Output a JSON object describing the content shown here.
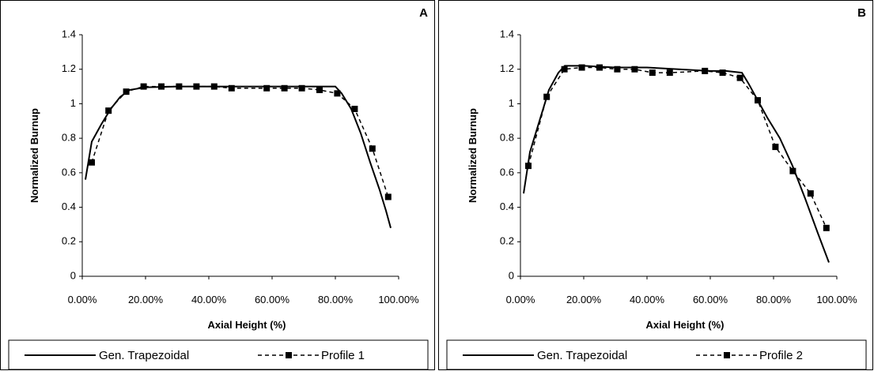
{
  "panels": [
    {
      "label": "A",
      "chart_data": {
        "type": "line",
        "xlabel": "Axial Height (%)",
        "ylabel": "Normalized Burnup",
        "xlim": [
          0,
          1
        ],
        "ylim": [
          0,
          1.4
        ],
        "yticks": [
          "0",
          "0.2",
          "0.4",
          "0.6",
          "0.8",
          "1",
          "1.2",
          "1.4"
        ],
        "xticks": [
          "0.00%",
          "20.00%",
          "40.00%",
          "60.00%",
          "80.00%",
          "100.00%"
        ],
        "grid": false,
        "legend_position": "bottom",
        "series": [
          {
            "name": "Gen. Trapezoidal",
            "style": "solid",
            "color": "#000000",
            "x": [
              0.01,
              0.03,
              0.06,
              0.09,
              0.12,
              0.15,
              0.2,
              0.3,
              0.4,
              0.5,
              0.6,
              0.7,
              0.8,
              0.82,
              0.85,
              0.88,
              0.91,
              0.94,
              0.96,
              0.975
            ],
            "y": [
              0.56,
              0.78,
              0.88,
              0.97,
              1.04,
              1.08,
              1.095,
              1.1,
              1.1,
              1.1,
              1.1,
              1.1,
              1.1,
              1.06,
              0.97,
              0.83,
              0.66,
              0.5,
              0.38,
              0.28
            ]
          },
          {
            "name": "Profile 1",
            "style": "dashed",
            "marker": "square",
            "color": "#000000",
            "x": [
              0.03,
              0.083,
              0.139,
              0.194,
              0.25,
              0.306,
              0.361,
              0.417,
              0.472,
              0.583,
              0.639,
              0.694,
              0.75,
              0.806,
              0.861,
              0.917,
              0.967
            ],
            "y": [
              0.66,
              0.96,
              1.07,
              1.1,
              1.1,
              1.1,
              1.1,
              1.1,
              1.09,
              1.09,
              1.09,
              1.09,
              1.08,
              1.06,
              0.97,
              0.74,
              0.46
            ]
          }
        ]
      }
    },
    {
      "label": "B",
      "chart_data": {
        "type": "line",
        "xlabel": "Axial Height (%)",
        "ylabel": "Normalized Burnup",
        "xlim": [
          0,
          1
        ],
        "ylim": [
          0,
          1.4
        ],
        "yticks": [
          "0",
          "0.2",
          "0.4",
          "0.6",
          "0.8",
          "1",
          "1.2",
          "1.4"
        ],
        "xticks": [
          "0.00%",
          "20.00%",
          "40.00%",
          "60.00%",
          "80.00%",
          "100.00%"
        ],
        "grid": false,
        "legend_position": "bottom",
        "series": [
          {
            "name": "Gen. Trapezoidal",
            "style": "solid",
            "color": "#000000",
            "x": [
              0.01,
              0.03,
              0.06,
              0.09,
              0.12,
              0.14,
              0.2,
              0.3,
              0.4,
              0.5,
              0.6,
              0.65,
              0.7,
              0.72,
              0.75,
              0.78,
              0.82,
              0.86,
              0.9,
              0.94,
              0.975
            ],
            "y": [
              0.48,
              0.72,
              0.9,
              1.08,
              1.18,
              1.22,
              1.22,
              1.21,
              1.21,
              1.2,
              1.19,
              1.19,
              1.18,
              1.12,
              1.02,
              0.92,
              0.8,
              0.64,
              0.45,
              0.25,
              0.08
            ]
          },
          {
            "name": "Profile 2",
            "style": "dashed",
            "marker": "square",
            "color": "#000000",
            "x": [
              0.025,
              0.083,
              0.139,
              0.194,
              0.25,
              0.306,
              0.361,
              0.417,
              0.472,
              0.583,
              0.639,
              0.694,
              0.75,
              0.806,
              0.861,
              0.917,
              0.967
            ],
            "y": [
              0.64,
              1.04,
              1.2,
              1.21,
              1.21,
              1.2,
              1.2,
              1.18,
              1.18,
              1.19,
              1.18,
              1.15,
              1.02,
              0.75,
              0.61,
              0.48,
              0.28
            ]
          }
        ]
      }
    }
  ]
}
